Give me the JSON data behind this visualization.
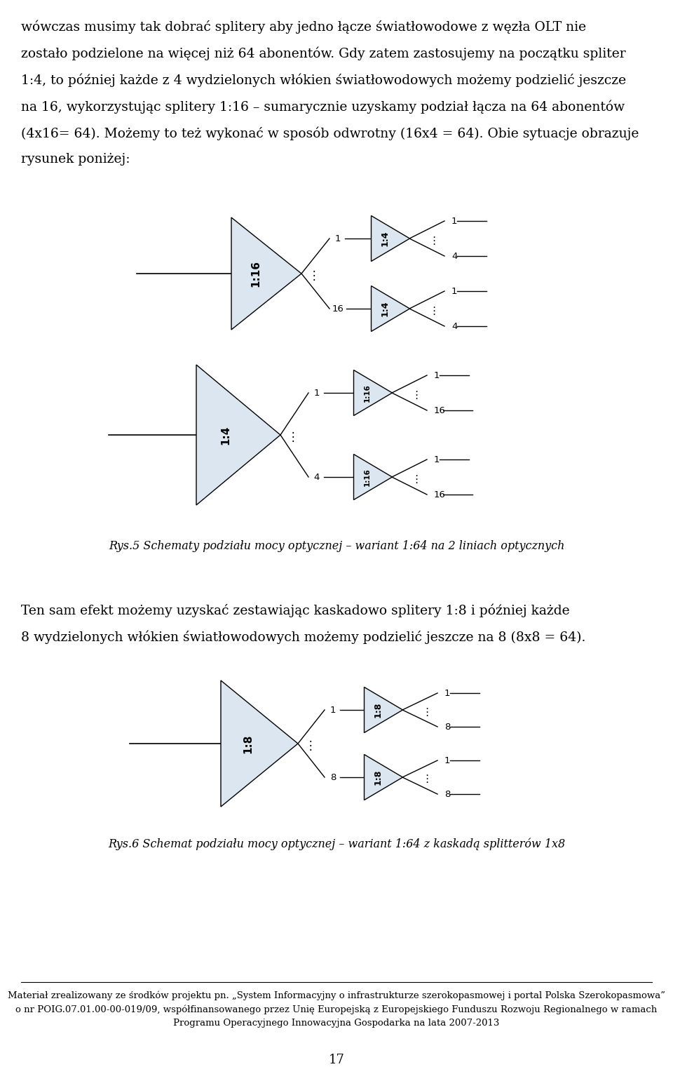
{
  "page_bg": "#ffffff",
  "text_color": "#000000",
  "splitter_fill": "#dce6f1",
  "splitter_edge": "#000000",
  "line_color": "#000000",
  "paragraph1_lines": [
    "wówczas musimy tak dobrać splitery aby jedno łącze światłowodowe z węzła OLT nie",
    "zostało podzielone na więcej niż 64 abonentów. Gdy zatem zastosujemy na początku spliter",
    "1:4, to później każde z 4 wydzielonych włókien światłowodowych możemy podzielić jeszcze",
    "na 16, wykorzystując splitery 1:16 – sumarycznie uzyskamy podział łącza na 64 abonentów",
    "(4x16= 64). Możemy to też wykonać w sposób odwrotny (16x4 = 64). Obie sytuacje obrazuje",
    "rysunek poniżej:"
  ],
  "caption1": "Rys.5 Schematy podziału mocy optycznej – wariant 1:64 na 2 liniach optycznych",
  "paragraph2_lines": [
    "Ten sam efekt możemy uzyskać zestawiając kaskadowo splitery 1:8 i później każde",
    "8 wydzielonych włókien światłowodowych możemy podzielić jeszcze na 8 (8x8 = 64)."
  ],
  "caption2": "Rys.6 Schemat podziału mocy optycznej – wariant 1:64 z kaskadą splitterów 1x8",
  "footer_line1": "Materiał zrealizowany ze środków projektu pn. „System Informacyjny o infrastrukturze szerokopasmowej i portal Polska Szerokopasmowa”",
  "footer_line2": "o nr POIG.07.01.00-00-019/09, współfinansowanego przez Unię Europejską z Europejskiego Funduszu Rozwoju Regionalnego w ramach",
  "footer_line3": "Programu Operacyjnego Innowacyjna Gospodarka na lata 2007-2013",
  "page_number": "17",
  "font_size_body": 13.5,
  "font_size_caption": 11.5,
  "font_size_footer": 9.5,
  "font_size_splitter_big": 11,
  "font_size_splitter_small": 9,
  "font_size_label": 9.5
}
